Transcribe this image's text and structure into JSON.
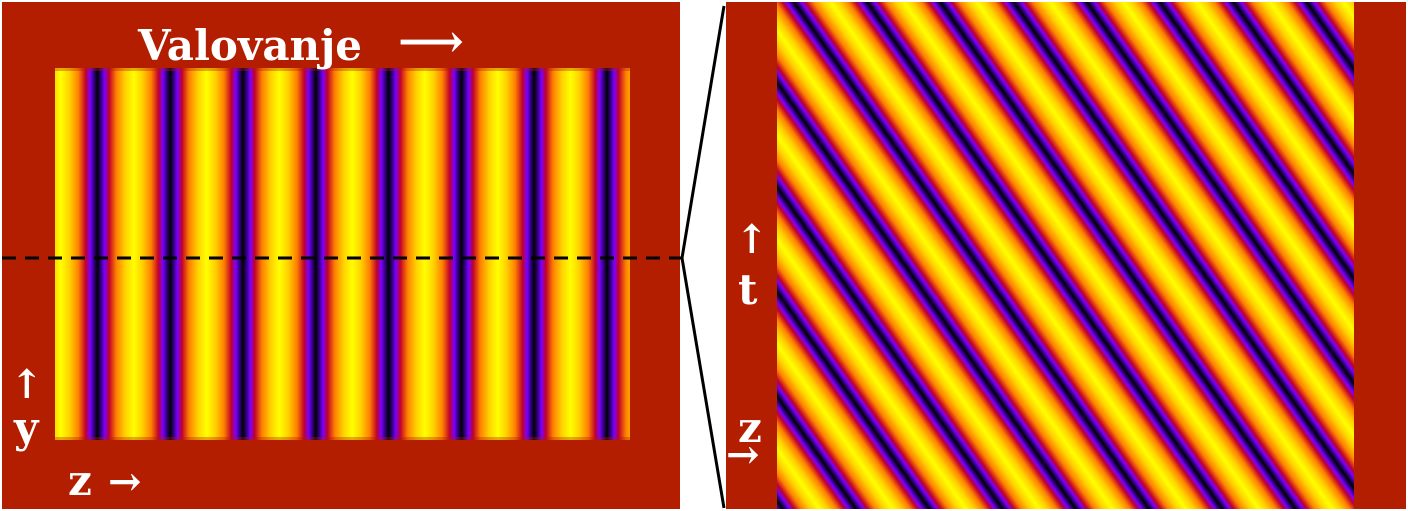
{
  "colors": {
    "background": "#b31e00",
    "page": "#ffffff",
    "guide_line": "#000000",
    "label": "#ffffff",
    "colormap": [
      "#ffff00",
      "#ff9a00",
      "#c0002a",
      "#5a00ff",
      "#000000"
    ]
  },
  "left_panel": {
    "title": "Valovanje",
    "title_arrow": "⟶",
    "y_axis": {
      "label": "y",
      "arrow": "↑"
    },
    "z_axis": {
      "label": "z",
      "arrow": "→"
    },
    "stripe_count": 16,
    "dashed_line": true
  },
  "right_panel": {
    "t_axis": {
      "label": "t",
      "arrow": "↑"
    },
    "z_axis": {
      "label": "z",
      "arrow": "→"
    },
    "diagonal_band_count": 16
  }
}
